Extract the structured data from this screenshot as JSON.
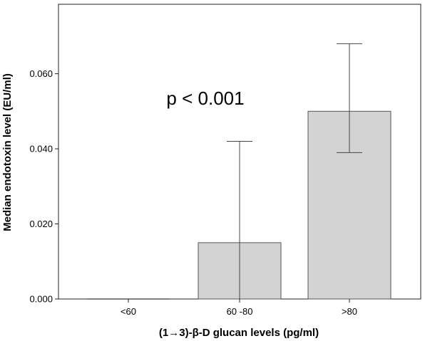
{
  "chart_data": {
    "type": "bar",
    "categories": [
      "<60",
      "60 -80",
      ">80"
    ],
    "values": [
      0.0,
      0.015,
      0.05
    ],
    "error_low": [
      0.0,
      0.0,
      0.039
    ],
    "error_high": [
      0.0,
      0.042,
      0.068
    ],
    "xlabel": "(1→3)-β-D glucan levels (pg/ml)",
    "ylabel": "Median endotoxin level (EU/ml)",
    "ylim": [
      0.0,
      0.0785
    ],
    "yticks": [
      0.0,
      0.02,
      0.04,
      0.06
    ],
    "ytick_labels": [
      "0.000",
      "0.020",
      "0.040",
      "0.060"
    ],
    "annotation": "p < 0.001",
    "grid": false,
    "bar_color": "#d3d3d3",
    "bar_edge_color": "#555555"
  }
}
